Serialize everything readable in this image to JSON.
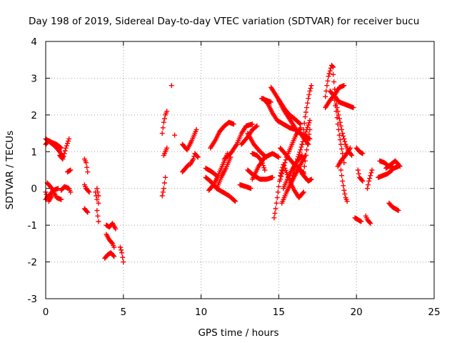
{
  "chart_data": {
    "type": "scatter",
    "title": "Day 198 of 2019, Sidereal Day-to-day VTEC variation (SDTVAR) for receiver bucu",
    "xlabel": "GPS time / hours",
    "ylabel": "SDTVAR / TECUs",
    "xlim": [
      0,
      25
    ],
    "ylim": [
      -3,
      4
    ],
    "x_ticks": [
      0,
      5,
      10,
      15,
      20,
      25
    ],
    "y_ticks": [
      -3,
      -2,
      -1,
      0,
      1,
      2,
      3,
      4
    ],
    "grid": true,
    "marker": "+",
    "color": "#ff0000",
    "segments": [
      {
        "x": [
          0.0,
          0.3,
          0.6,
          0.9,
          1.1
        ],
        "y": [
          1.35,
          1.25,
          1.15,
          1.0,
          0.85
        ]
      },
      {
        "x": [
          0.0,
          0.2,
          0.4,
          0.7,
          1.0
        ],
        "y": [
          1.2,
          1.3,
          1.25,
          1.2,
          1.1
        ]
      },
      {
        "x": [
          0.9,
          1.1,
          1.3,
          1.5
        ],
        "y": [
          0.9,
          0.8,
          1.1,
          1.35
        ]
      },
      {
        "x": [
          1.4,
          1.6
        ],
        "y": [
          0.45,
          0.5
        ]
      },
      {
        "x": [
          0.0,
          0.2,
          0.5,
          0.8
        ],
        "y": [
          -0.3,
          -0.2,
          -0.05,
          0.0
        ]
      },
      {
        "x": [
          0.1,
          0.4,
          0.7,
          1.0
        ],
        "y": [
          0.15,
          0.0,
          -0.25,
          -0.3
        ]
      },
      {
        "x": [
          0.0,
          0.2,
          0.4
        ],
        "y": [
          -0.1,
          -0.35,
          -0.2
        ]
      },
      {
        "x": [
          1.0,
          1.2,
          1.5,
          1.6
        ],
        "y": [
          -0.05,
          0.05,
          0.0,
          -0.1
        ]
      },
      {
        "x": [
          2.5,
          2.6,
          2.7
        ],
        "y": [
          0.8,
          0.7,
          0.45
        ]
      },
      {
        "x": [
          2.5,
          2.6,
          2.8
        ],
        "y": [
          0.1,
          0.0,
          -0.1
        ]
      },
      {
        "x": [
          2.5,
          2.6,
          2.7
        ],
        "y": [
          -0.55,
          -0.6,
          -0.65
        ]
      },
      {
        "x": [
          3.2,
          3.3,
          3.3,
          3.4
        ],
        "y": [
          -0.1,
          -0.3,
          -0.6,
          -0.9
        ]
      },
      {
        "x": [
          3.3,
          3.4,
          3.4
        ],
        "y": [
          0.0,
          -0.2,
          -0.4
        ]
      },
      {
        "x": [
          3.9,
          4.1,
          4.3,
          4.5
        ],
        "y": [
          -1.0,
          -1.05,
          -0.95,
          -1.1
        ]
      },
      {
        "x": [
          3.9,
          4.1,
          4.3,
          4.4
        ],
        "y": [
          -1.25,
          -1.4,
          -1.5,
          -1.6
        ]
      },
      {
        "x": [
          3.8,
          4.0,
          4.2,
          4.4
        ],
        "y": [
          -1.9,
          -1.8,
          -1.75,
          -1.85
        ]
      },
      {
        "x": [
          4.8,
          4.9,
          5.0
        ],
        "y": [
          -1.6,
          -1.75,
          -2.0
        ]
      },
      {
        "x": [
          7.5,
          7.6,
          7.7,
          7.8
        ],
        "y": [
          1.5,
          1.8,
          2.0,
          2.1
        ]
      },
      {
        "x": [
          7.5,
          7.6,
          7.7
        ],
        "y": [
          -0.2,
          0.0,
          0.3
        ]
      },
      {
        "x": [
          7.6,
          7.7,
          7.8
        ],
        "y": [
          0.9,
          1.0,
          1.1
        ]
      },
      {
        "x": [
          8.1
        ],
        "y": [
          2.8
        ]
      },
      {
        "x": [
          8.3
        ],
        "y": [
          1.45
        ]
      },
      {
        "x": [
          8.8,
          9.1,
          9.4,
          9.6,
          9.7
        ],
        "y": [
          1.2,
          1.05,
          1.3,
          1.5,
          1.6
        ]
      },
      {
        "x": [
          8.8,
          9.0,
          9.2
        ],
        "y": [
          0.45,
          0.55,
          0.65
        ]
      },
      {
        "x": [
          9.3,
          9.5,
          9.6,
          9.8
        ],
        "y": [
          0.65,
          0.8,
          0.95,
          0.85
        ]
      },
      {
        "x": [
          10.6,
          10.9,
          11.2,
          11.5,
          11.8,
          12.1
        ],
        "y": [
          1.1,
          1.3,
          1.55,
          1.7,
          1.8,
          1.75
        ]
      },
      {
        "x": [
          11.5,
          11.9,
          12.3,
          12.6,
          12.9,
          13.3
        ],
        "y": [
          0.8,
          0.95,
          1.2,
          1.5,
          1.7,
          1.75
        ]
      },
      {
        "x": [
          10.3,
          10.6,
          11.0,
          11.4,
          11.8,
          12.2
        ],
        "y": [
          0.3,
          0.2,
          0.0,
          -0.1,
          -0.2,
          -0.35
        ]
      },
      {
        "x": [
          10.5,
          10.8,
          11.1,
          11.4,
          11.7
        ],
        "y": [
          -0.05,
          0.1,
          0.35,
          0.65,
          0.95
        ]
      },
      {
        "x": [
          11.0,
          11.3,
          11.6,
          11.9
        ],
        "y": [
          0.0,
          0.3,
          0.55,
          0.85
        ]
      },
      {
        "x": [
          10.3,
          10.7,
          11.0
        ],
        "y": [
          0.55,
          0.45,
          0.35
        ]
      },
      {
        "x": [
          12.5,
          12.9,
          13.2
        ],
        "y": [
          0.1,
          0.05,
          0.0
        ]
      },
      {
        "x": [
          12.6,
          13.0,
          13.3,
          13.6
        ],
        "y": [
          1.2,
          1.4,
          1.6,
          1.7
        ]
      },
      {
        "x": [
          13.0,
          13.4,
          13.8,
          14.2
        ],
        "y": [
          1.5,
          1.2,
          1.0,
          0.85
        ]
      },
      {
        "x": [
          13.0,
          13.4,
          13.8,
          14.2,
          14.6
        ],
        "y": [
          0.5,
          0.35,
          0.25,
          0.25,
          0.3
        ]
      },
      {
        "x": [
          13.3,
          13.6,
          13.9,
          14.1
        ],
        "y": [
          0.95,
          0.9,
          0.75,
          0.5
        ]
      },
      {
        "x": [
          13.3,
          13.7,
          14.1,
          14.6,
          15.0
        ],
        "y": [
          0.25,
          0.6,
          0.85,
          0.95,
          0.85
        ]
      },
      {
        "x": [
          13.9,
          14.2,
          14.5
        ],
        "y": [
          2.45,
          2.4,
          2.35
        ]
      },
      {
        "x": [
          14.0,
          14.3,
          14.6,
          14.9,
          15.3,
          15.7,
          16.1,
          16.5,
          16.9
        ],
        "y": [
          2.45,
          2.3,
          2.05,
          1.85,
          1.75,
          1.65,
          1.6,
          1.45,
          1.2
        ]
      },
      {
        "x": [
          14.5,
          14.8,
          15.1,
          15.4,
          15.7,
          16.0,
          16.4
        ],
        "y": [
          2.75,
          2.55,
          2.35,
          2.15,
          2.0,
          1.9,
          1.75
        ]
      },
      {
        "x": [
          15.0,
          15.3,
          15.6,
          15.9,
          16.2,
          16.6,
          17.0
        ],
        "y": [
          2.4,
          2.15,
          1.95,
          1.75,
          1.55,
          1.45,
          1.35
        ]
      },
      {
        "x": [
          14.7,
          14.8,
          14.9,
          15.0,
          15.1,
          15.3
        ],
        "y": [
          -0.8,
          -0.55,
          -0.25,
          0.05,
          0.35,
          0.65
        ]
      },
      {
        "x": [
          15.1,
          15.3,
          15.5,
          15.8,
          16.1,
          16.4
        ],
        "y": [
          0.25,
          0.55,
          0.85,
          1.15,
          1.45,
          1.65
        ]
      },
      {
        "x": [
          15.1,
          15.4,
          15.7,
          16.0,
          16.3,
          16.6
        ],
        "y": [
          1.1,
          0.95,
          0.8,
          0.65,
          0.55,
          0.4
        ]
      },
      {
        "x": [
          15.2,
          15.5,
          15.8,
          16.1,
          16.4,
          16.7
        ],
        "y": [
          -0.4,
          -0.1,
          0.15,
          0.4,
          0.65,
          0.9
        ]
      },
      {
        "x": [
          15.3,
          15.6,
          15.9,
          16.2,
          16.5
        ],
        "y": [
          0.0,
          0.3,
          0.55,
          0.75,
          0.9
        ]
      },
      {
        "x": [
          15.4,
          15.7,
          16.0,
          16.3,
          16.6
        ],
        "y": [
          0.55,
          0.2,
          -0.05,
          -0.25,
          -0.1
        ]
      },
      {
        "x": [
          15.8,
          16.0,
          16.2,
          16.4,
          16.6,
          16.8,
          17.0
        ],
        "y": [
          0.2,
          0.5,
          0.8,
          1.05,
          1.35,
          1.6,
          1.85
        ]
      },
      {
        "x": [
          16.5,
          16.6,
          16.7,
          16.8,
          16.9,
          17.0,
          17.1
        ],
        "y": [
          1.2,
          1.6,
          1.95,
          2.2,
          2.45,
          2.65,
          2.8
        ]
      },
      {
        "x": [
          16.6,
          16.7,
          16.8,
          16.9,
          17.0
        ],
        "y": [
          0.45,
          0.75,
          1.05,
          1.35,
          1.6
        ]
      },
      {
        "x": [
          16.3,
          16.5,
          16.7,
          16.9,
          17.1
        ],
        "y": [
          0.55,
          0.4,
          0.3,
          0.2,
          0.25
        ]
      },
      {
        "x": [
          18.0,
          18.1,
          18.2,
          18.3,
          18.4,
          18.5
        ],
        "y": [
          2.5,
          2.8,
          3.05,
          3.2,
          3.35,
          3.3
        ]
      },
      {
        "x": [
          18.0,
          18.3,
          18.6,
          18.9,
          19.2
        ],
        "y": [
          2.2,
          2.4,
          2.55,
          2.75,
          2.8
        ]
      },
      {
        "x": [
          18.3,
          18.6,
          18.9,
          19.2,
          19.5,
          19.8
        ],
        "y": [
          2.65,
          2.5,
          2.35,
          2.3,
          2.25,
          2.2
        ]
      },
      {
        "x": [
          18.5,
          18.6,
          18.7,
          18.9,
          19.1,
          19.3,
          19.5,
          19.7
        ],
        "y": [
          3.1,
          2.7,
          2.3,
          1.9,
          1.5,
          1.2,
          1.0,
          0.9
        ]
      },
      {
        "x": [
          18.6,
          18.7,
          18.8,
          18.9,
          19.0,
          19.1,
          19.2
        ],
        "y": [
          2.4,
          2.1,
          1.75,
          1.45,
          1.2,
          0.95,
          0.7
        ]
      },
      {
        "x": [
          19.0,
          19.1,
          19.2,
          19.3,
          19.4
        ],
        "y": [
          0.5,
          0.2,
          -0.05,
          -0.25,
          -0.35
        ]
      },
      {
        "x": [
          18.8,
          19.0,
          19.3,
          19.6
        ],
        "y": [
          0.6,
          0.75,
          0.9,
          1.1
        ]
      },
      {
        "x": [
          20.0,
          20.2,
          20.4
        ],
        "y": [
          1.1,
          1.0,
          0.95
        ]
      },
      {
        "x": [
          20.1,
          20.2,
          20.4
        ],
        "y": [
          0.5,
          0.3,
          0.2
        ]
      },
      {
        "x": [
          19.9,
          20.1,
          20.3
        ],
        "y": [
          -0.8,
          -0.85,
          -0.9
        ]
      },
      {
        "x": [
          20.6,
          20.7,
          20.9
        ],
        "y": [
          -0.75,
          -0.85,
          -0.95
        ]
      },
      {
        "x": [
          20.7,
          20.8,
          20.9,
          21.0
        ],
        "y": [
          0.0,
          0.2,
          0.35,
          0.5
        ]
      },
      {
        "x": [
          21.4,
          21.7,
          22.0,
          22.3
        ],
        "y": [
          0.3,
          0.35,
          0.4,
          0.5
        ]
      },
      {
        "x": [
          21.5,
          21.8,
          22.1,
          22.4,
          22.7
        ],
        "y": [
          0.75,
          0.7,
          0.6,
          0.55,
          0.6
        ]
      },
      {
        "x": [
          21.9,
          22.2,
          22.5,
          22.8
        ],
        "y": [
          0.55,
          0.65,
          0.75,
          0.6
        ]
      },
      {
        "x": [
          22.1,
          22.3,
          22.5,
          22.7
        ],
        "y": [
          -0.4,
          -0.5,
          -0.55,
          -0.6
        ]
      }
    ]
  }
}
